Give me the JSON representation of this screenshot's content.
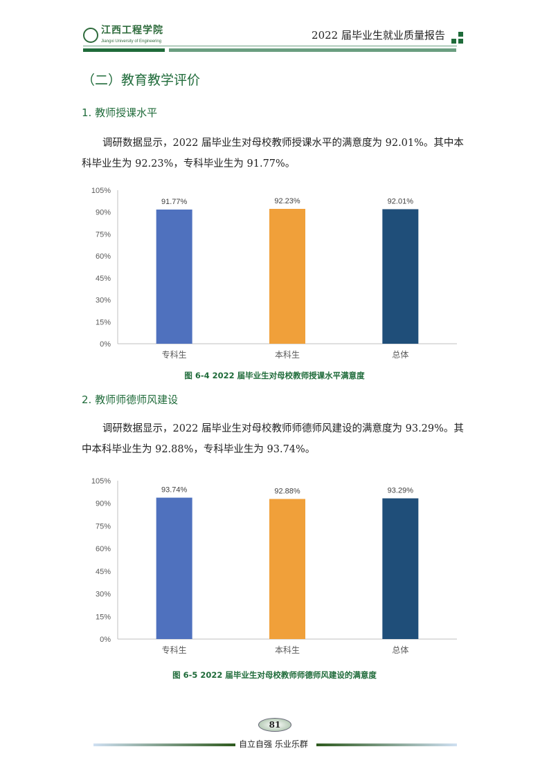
{
  "header": {
    "logo_name": "江西工程学院",
    "logo_en": "Jiangxi University of Engineering",
    "title": "2022 届毕业生就业质量报告"
  },
  "section_title": "（二）教育教学评价",
  "subsections": [
    {
      "heading": "1. 教师授课水平",
      "paragraph": "调研数据显示，2022 届毕业生对母校教师授课水平的满意度为 92.01%。其中本科毕业生为 92.23%，专科毕业生为 91.77%。",
      "caption": "图 6-4 2022 届毕业生对母校教师授课水平满意度"
    },
    {
      "heading": "2. 教师师德师风建设",
      "paragraph": "调研数据显示，2022 届毕业生对母校教师师德师风建设的满意度为 93.29%。其中本科毕业生为 92.88%，专科毕业生为 93.74%。",
      "caption": "图 6-5 2022 届毕业生对母校教师师德师风建设的满意度"
    }
  ],
  "chart_data": [
    {
      "type": "bar",
      "categories": [
        "专科生",
        "本科生",
        "总体"
      ],
      "values": [
        91.77,
        92.23,
        92.01
      ],
      "data_labels": [
        "91.77%",
        "92.23%",
        "92.01%"
      ],
      "colors": [
        "#4f71be",
        "#f0a03a",
        "#1f4e79"
      ],
      "yticks": [
        "0%",
        "15%",
        "30%",
        "45%",
        "60%",
        "75%",
        "90%",
        "105%"
      ],
      "ylim": [
        0,
        105
      ],
      "grid": false
    },
    {
      "type": "bar",
      "categories": [
        "专科生",
        "本科生",
        "总体"
      ],
      "values": [
        93.74,
        92.88,
        93.29
      ],
      "data_labels": [
        "93.74%",
        "92.88%",
        "93.29%"
      ],
      "colors": [
        "#4f71be",
        "#f0a03a",
        "#1f4e79"
      ],
      "yticks": [
        "0%",
        "15%",
        "30%",
        "45%",
        "60%",
        "75%",
        "90%",
        "105%"
      ],
      "ylim": [
        0,
        105
      ],
      "grid": false
    }
  ],
  "footer": {
    "page_number": "81",
    "motto": "自立自强  乐业乐群"
  }
}
